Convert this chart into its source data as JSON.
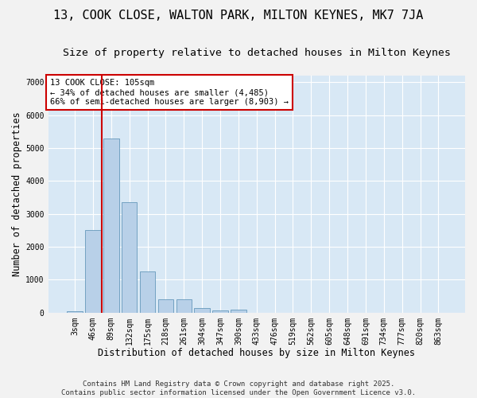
{
  "title": "13, COOK CLOSE, WALTON PARK, MILTON KEYNES, MK7 7JA",
  "subtitle": "Size of property relative to detached houses in Milton Keynes",
  "xlabel": "Distribution of detached houses by size in Milton Keynes",
  "ylabel": "Number of detached properties",
  "categories": [
    "3sqm",
    "46sqm",
    "89sqm",
    "132sqm",
    "175sqm",
    "218sqm",
    "261sqm",
    "304sqm",
    "347sqm",
    "390sqm",
    "433sqm",
    "476sqm",
    "519sqm",
    "562sqm",
    "605sqm",
    "648sqm",
    "691sqm",
    "734sqm",
    "777sqm",
    "820sqm",
    "863sqm"
  ],
  "values": [
    50,
    2500,
    5300,
    3350,
    1250,
    400,
    400,
    140,
    70,
    85,
    0,
    0,
    0,
    0,
    0,
    0,
    0,
    0,
    0,
    0,
    0
  ],
  "bar_color": "#b8d0e8",
  "bar_edge_color": "#6699bb",
  "bg_color": "#d8e8f5",
  "grid_color": "#ffffff",
  "vline_position": 1.5,
  "vline_color": "#cc0000",
  "annotation_text": "13 COOK CLOSE: 105sqm\n← 34% of detached houses are smaller (4,485)\n66% of semi-detached houses are larger (8,903) →",
  "annotation_box_color": "#cc0000",
  "ylim": [
    0,
    7200
  ],
  "yticks": [
    0,
    1000,
    2000,
    3000,
    4000,
    5000,
    6000,
    7000
  ],
  "footer": "Contains HM Land Registry data © Crown copyright and database right 2025.\nContains public sector information licensed under the Open Government Licence v3.0.",
  "title_fontsize": 11,
  "subtitle_fontsize": 9.5,
  "axis_label_fontsize": 8.5,
  "tick_fontsize": 7,
  "annotation_fontsize": 7.5,
  "footer_fontsize": 6.5,
  "fig_facecolor": "#f2f2f2"
}
